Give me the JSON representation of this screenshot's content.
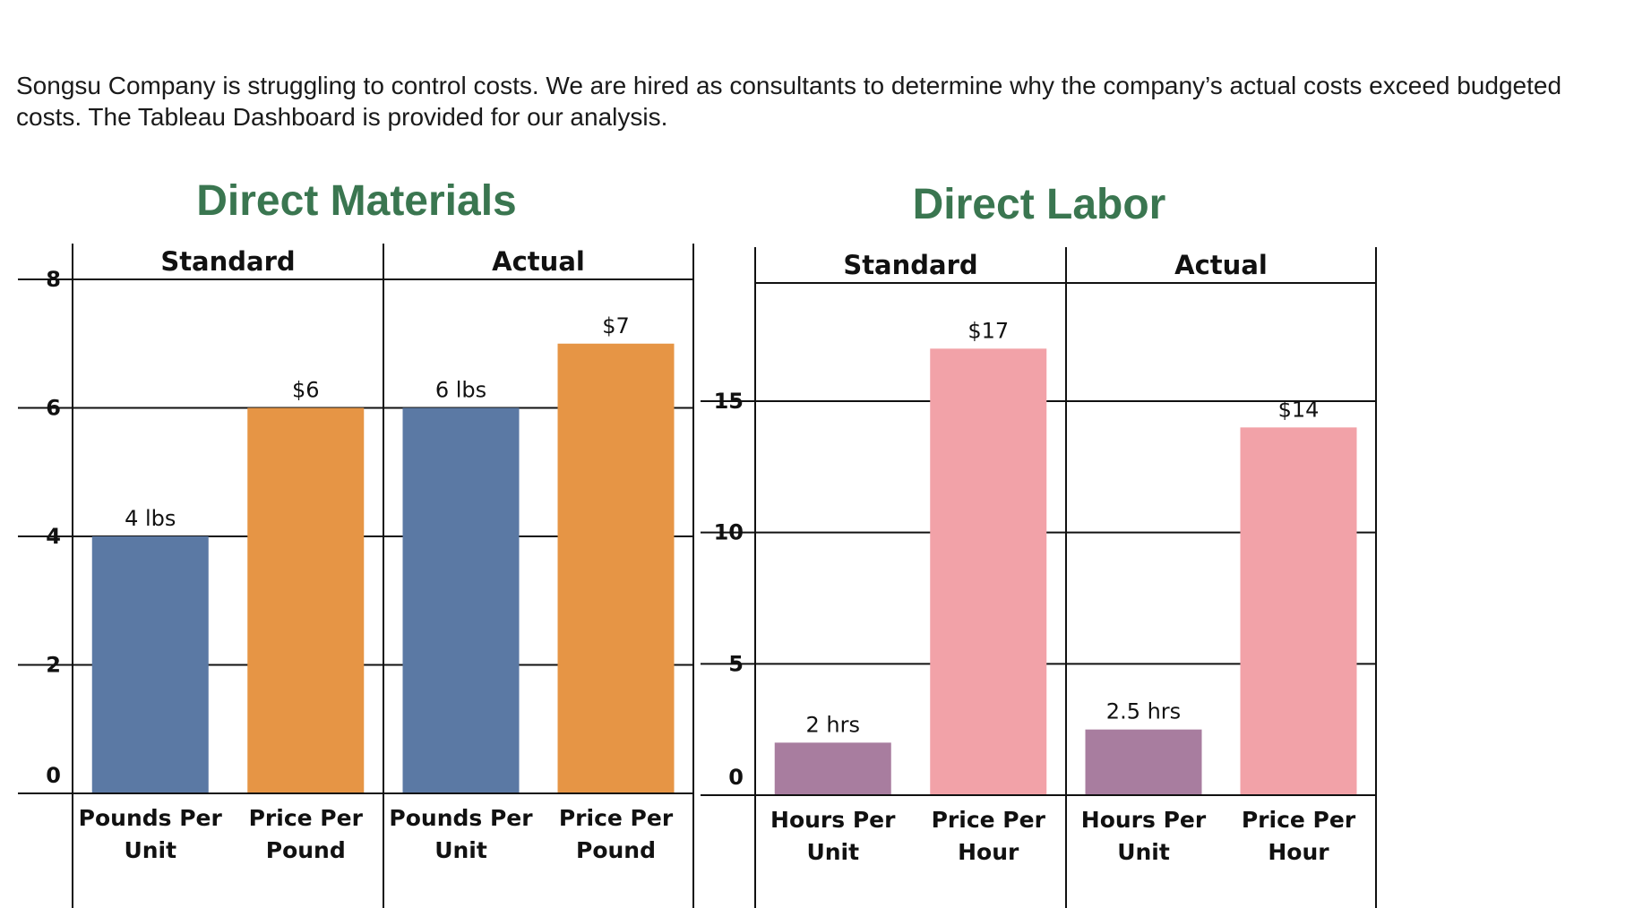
{
  "intro_text": "Songsu Company is struggling to control costs. We are hired as consultants to determine why the company’s actual costs exceed budgeted costs. The Tableau Dashboard is provided for our analysis.",
  "chart_data": [
    {
      "type": "bar",
      "title": "Direct Materials",
      "ylim": [
        0,
        8
      ],
      "yticks": [
        0,
        2,
        4,
        6,
        8
      ],
      "grid": true,
      "groups": [
        {
          "name": "Standard",
          "bars": [
            {
              "category": [
                "Pounds Per",
                "Unit"
              ],
              "value": 4,
              "label": "4 lbs",
              "color": "#5b79a4"
            },
            {
              "category": [
                "Price Per",
                "Pound"
              ],
              "value": 6,
              "label": "$6",
              "color": "#e69545"
            }
          ]
        },
        {
          "name": "Actual",
          "bars": [
            {
              "category": [
                "Pounds Per",
                "Unit"
              ],
              "value": 6,
              "label": "6 lbs",
              "color": "#5b79a4"
            },
            {
              "category": [
                "Price Per",
                "Pound"
              ],
              "value": 7,
              "label": "$7",
              "color": "#e69545"
            }
          ]
        }
      ]
    },
    {
      "type": "bar",
      "title": "Direct Labor",
      "ylim": [
        0,
        19.5
      ],
      "yticks": [
        0,
        5,
        10,
        15
      ],
      "grid": true,
      "groups": [
        {
          "name": "Standard",
          "bars": [
            {
              "category": [
                "Hours Per",
                "Unit"
              ],
              "value": 2,
              "label": "2 hrs",
              "color": "#a87d9f"
            },
            {
              "category": [
                "Price Per",
                "Hour"
              ],
              "value": 17,
              "label": "$17",
              "color": "#f2a2a8"
            }
          ]
        },
        {
          "name": "Actual",
          "bars": [
            {
              "category": [
                "Hours Per",
                "Unit"
              ],
              "value": 2.5,
              "label": "2.5 hrs",
              "color": "#a87d9f"
            },
            {
              "category": [
                "Price Per",
                "Hour"
              ],
              "value": 14,
              "label": "$14",
              "color": "#f2a2a8"
            }
          ]
        }
      ]
    }
  ]
}
